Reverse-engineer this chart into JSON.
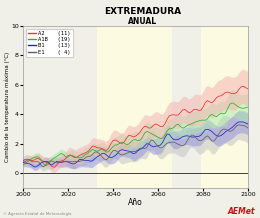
{
  "title": "EXTREMADURA",
  "subtitle": "ANUAL",
  "xlabel": "Año",
  "ylabel": "Cambio de la temperatura máxima (°C)",
  "xlim": [
    2000,
    2100
  ],
  "ylim": [
    -1,
    10
  ],
  "yticks": [
    0,
    2,
    4,
    6,
    8,
    10
  ],
  "xticks": [
    2000,
    2020,
    2040,
    2060,
    2080,
    2100
  ],
  "scenarios": [
    "A2",
    "A1B",
    "B1",
    "E1"
  ],
  "counts": [
    11,
    19,
    13,
    4
  ],
  "colors": [
    "#e83030",
    "#30b030",
    "#2222cc",
    "#606060"
  ],
  "shading_colors": [
    "#f5b0b0",
    "#a8e8a8",
    "#9090e0",
    "#c0c0c0"
  ],
  "bg_color": "#f0f0e8",
  "plot_bg": "#f0f0e8",
  "zero_line_color": "#222222",
  "highlight_ranges": [
    [
      2033,
      2066
    ],
    [
      2079,
      2100
    ]
  ],
  "seed": 42
}
